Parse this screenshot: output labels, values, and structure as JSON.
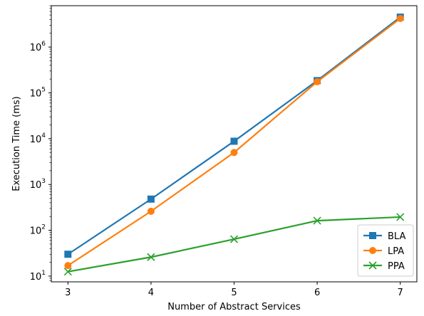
{
  "chart_data": {
    "type": "line",
    "title": "",
    "xlabel": "Number of Abstract Services",
    "ylabel": "Execution Time (ms)",
    "x": [
      3,
      4,
      5,
      6,
      7
    ],
    "x_ticks": [
      "3",
      "4",
      "5",
      "6",
      "7"
    ],
    "xlim": [
      2.8,
      7.2
    ],
    "yscale": "log",
    "ylim": [
      7.5,
      8000000
    ],
    "y_ticks": [
      {
        "value": 10,
        "base": "10",
        "exp": "1"
      },
      {
        "value": 100,
        "base": "10",
        "exp": "2"
      },
      {
        "value": 1000,
        "base": "10",
        "exp": "3"
      },
      {
        "value": 10000,
        "base": "10",
        "exp": "4"
      },
      {
        "value": 100000,
        "base": "10",
        "exp": "5"
      },
      {
        "value": 1000000,
        "base": "10",
        "exp": "6"
      }
    ],
    "grid": false,
    "legend_position": "lower-right",
    "series": [
      {
        "name": "BLA",
        "color": "#1f77b4",
        "marker": "square",
        "values": [
          30,
          480,
          8800,
          185000,
          4500000
        ]
      },
      {
        "name": "LPA",
        "color": "#ff7f0e",
        "marker": "circle",
        "values": [
          17,
          260,
          5000,
          175000,
          4200000
        ]
      },
      {
        "name": "PPA",
        "color": "#2ca02c",
        "marker": "x",
        "values": [
          12.5,
          26,
          64,
          162,
          195
        ]
      }
    ]
  }
}
